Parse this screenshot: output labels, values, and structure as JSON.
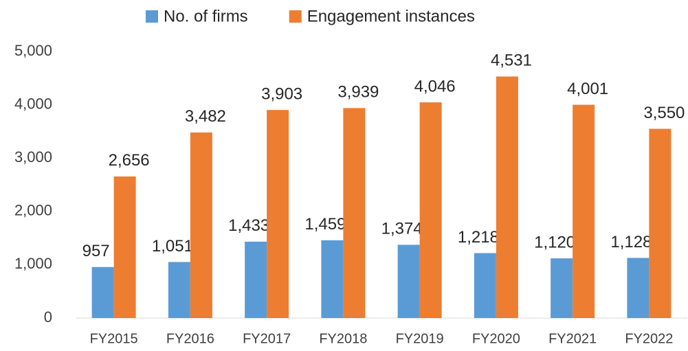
{
  "chart_data": {
    "type": "bar",
    "categories": [
      "FY2015",
      "FY2016",
      "FY2017",
      "FY2018",
      "FY2019",
      "FY2020",
      "FY2021",
      "FY2022"
    ],
    "series": [
      {
        "name": "No. of firms",
        "color": "#5b9bd5",
        "values": [
          957,
          1051,
          1433,
          1459,
          1374,
          1218,
          1120,
          1128
        ],
        "value_labels": [
          "957",
          "1,051",
          "1,433",
          "1,459",
          "1,374",
          "1,218",
          "1,120",
          "1,128"
        ]
      },
      {
        "name": "Engagement instances",
        "color": "#ed7d31",
        "values": [
          2656,
          3482,
          3903,
          3939,
          4046,
          4531,
          4001,
          3550
        ],
        "value_labels": [
          "2,656",
          "3,482",
          "3,903",
          "3,939",
          "4,046",
          "4,531",
          "4,001",
          "3,550"
        ]
      }
    ],
    "ylim": [
      0,
      5000
    ],
    "yticks": [
      0,
      {
        "value": 1000,
        "label": "1,000"
      },
      {
        "value": 2000,
        "label": "2,000"
      },
      {
        "value": 3000,
        "label": "3,000"
      },
      {
        "value": 4000,
        "label": "4,000"
      },
      {
        "value": 5000,
        "label": "5,000"
      }
    ],
    "grid": false,
    "legend": "top"
  }
}
